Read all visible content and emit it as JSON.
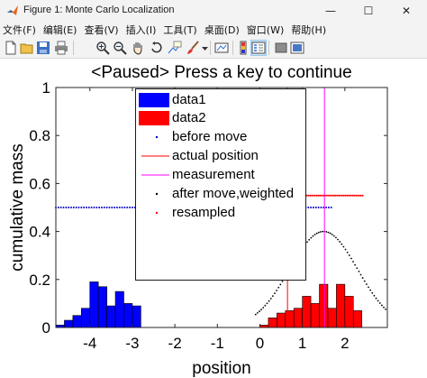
{
  "window": {
    "title": "Figure 1: Monte Carlo Localization",
    "minimize_glyph": "—",
    "maximize_glyph": "☐",
    "close_glyph": "✕"
  },
  "menu": [
    "文件(F)",
    "编辑(E)",
    "查看(V)",
    "插入(I)",
    "工具(T)",
    "桌面(D)",
    "窗口(W)",
    "帮助(H)"
  ],
  "toolbar": {
    "icons": [
      "new-figure-icon",
      "open-file-icon",
      "save-icon",
      "print-icon",
      "zoom-in-icon",
      "zoom-out-icon",
      "pan-icon",
      "rotate-icon",
      "data-cursor-icon",
      "brush-icon",
      "brush-dropdown-icon",
      "link-plot-icon",
      "colorbar-icon",
      "legend-icon",
      "hide-plot-tools-icon",
      "show-plot-tools-icon"
    ]
  },
  "plot": {
    "title": "<Paused>  Press a key to continue",
    "legend": [
      {
        "label": "data1",
        "type": "patch",
        "color": "#0000ff"
      },
      {
        "label": "data2",
        "type": "patch",
        "color": "#ff0000"
      },
      {
        "label": "before move",
        "type": "dot",
        "color": "#0000c8"
      },
      {
        "label": "actual position",
        "type": "line",
        "color": "#ff0000"
      },
      {
        "label": "measurement",
        "type": "line",
        "color": "#ff00ff"
      },
      {
        "label": "after move,weighted",
        "type": "dot",
        "color": "#000000"
      },
      {
        "label": "resampled",
        "type": "dot",
        "color": "#ff0000"
      }
    ]
  },
  "chart_data": {
    "type": "bar",
    "xlabel": "position",
    "ylabel": "cumulative mass",
    "xlim": [
      -4.8,
      3.0
    ],
    "ylim": [
      0,
      1
    ],
    "xticks": [
      -4,
      -3,
      -2,
      -1,
      0,
      1,
      2
    ],
    "yticks": [
      0,
      0.2,
      0.4,
      0.6,
      0.8,
      1
    ],
    "grid": false,
    "legend_position": "top-center",
    "bar_width": 0.2,
    "series": [
      {
        "name": "data1",
        "color": "#0000ff",
        "x": [
          -4.7,
          -4.5,
          -4.3,
          -4.1,
          -3.9,
          -3.7,
          -3.5,
          -3.3,
          -3.1,
          -2.9
        ],
        "values": [
          0.01,
          0.03,
          0.05,
          0.08,
          0.19,
          0.17,
          0.09,
          0.15,
          0.1,
          0.09
        ]
      },
      {
        "name": "data2",
        "color": "#ff0000",
        "x": [
          0.1,
          0.3,
          0.5,
          0.7,
          0.9,
          1.1,
          1.3,
          1.5,
          1.7,
          1.9,
          2.1,
          2.3
        ],
        "values": [
          0.01,
          0.04,
          0.06,
          0.07,
          0.08,
          0.13,
          0.1,
          0.18,
          0.08,
          0.18,
          0.13,
          0.07
        ]
      }
    ],
    "before_move": {
      "color": "#0000c8",
      "y": 0.5,
      "x_range": [
        -4.8,
        1.7
      ]
    },
    "resampled": {
      "color": "#ff0000",
      "y": 0.55,
      "x_range": [
        1.1,
        2.45
      ]
    },
    "actual_position": {
      "x": 0.65,
      "color": "#ff0000"
    },
    "measurement": {
      "x": 1.52,
      "color": "#ff00ff"
    },
    "after_move_weighted": {
      "color": "#000000",
      "mean": 1.5,
      "peak": 0.4,
      "std": 0.8,
      "x_range": [
        -0.1,
        3.0
      ]
    }
  }
}
